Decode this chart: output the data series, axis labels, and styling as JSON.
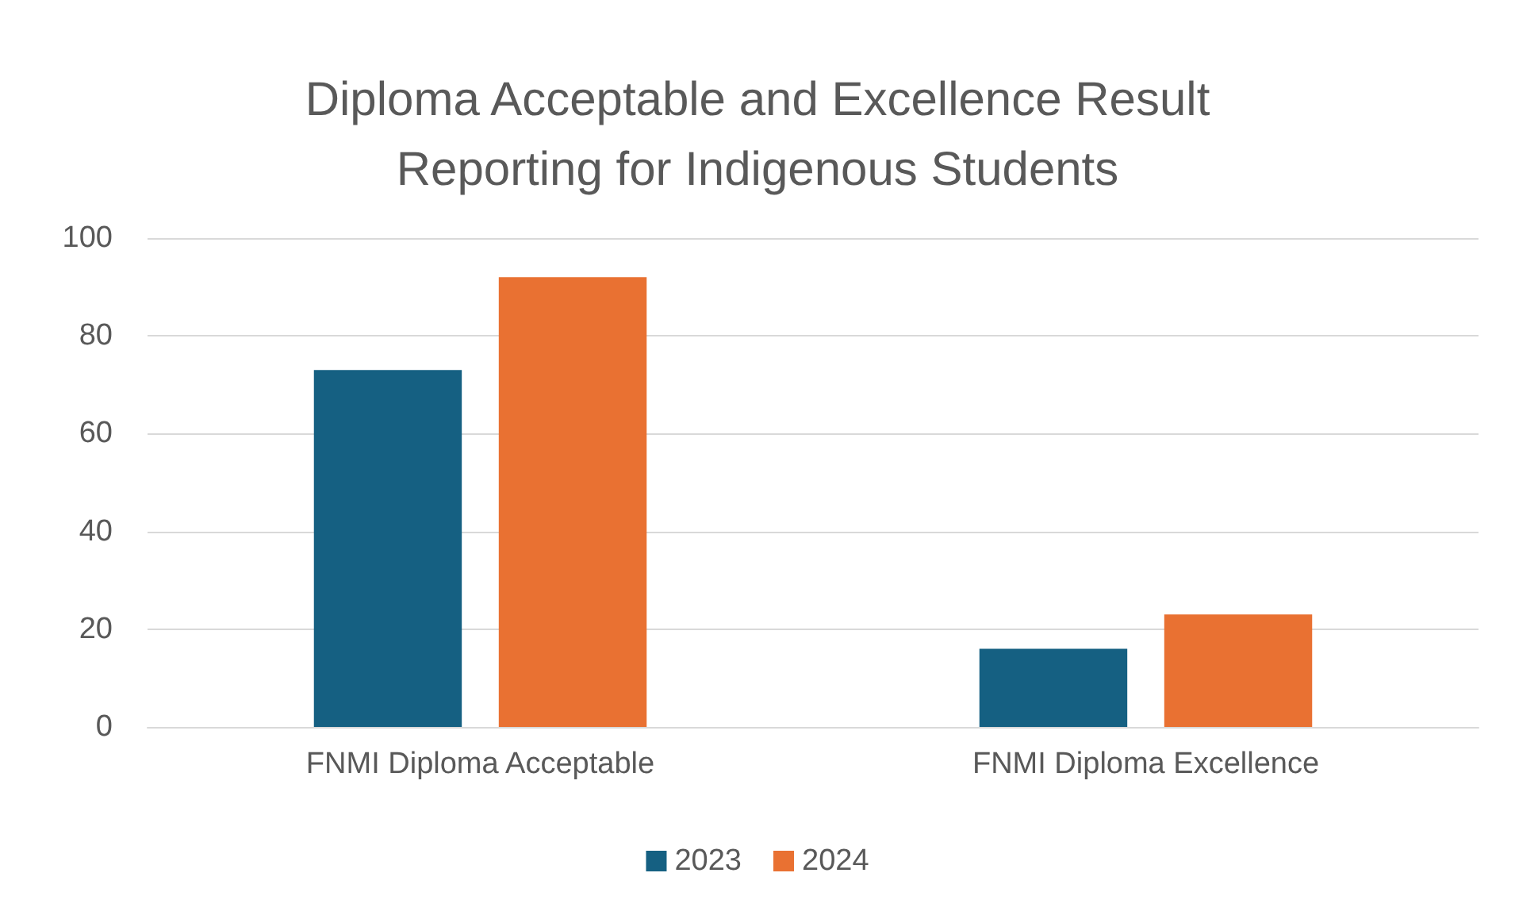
{
  "chart_data": {
    "type": "bar",
    "title": "Diploma Acceptable and Excellence Result\nReporting for Indigenous Students",
    "categories": [
      "FNMI Diploma Acceptable",
      "FNMI Diploma Excellence"
    ],
    "series": [
      {
        "name": "2023",
        "color": "#156082",
        "values": [
          73,
          16
        ]
      },
      {
        "name": "2024",
        "color": "#e97132",
        "values": [
          92,
          23
        ]
      }
    ],
    "ylim": [
      0,
      100
    ],
    "yticks": [
      0,
      20,
      40,
      60,
      80,
      100
    ],
    "grid": "y",
    "legend": "bottom"
  }
}
